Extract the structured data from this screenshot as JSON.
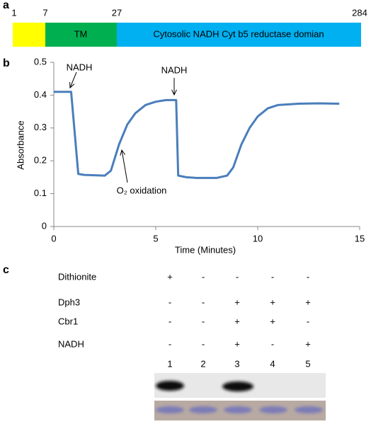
{
  "panel_a": {
    "label": "a",
    "positions": [
      "1",
      "7",
      "27",
      "284"
    ],
    "domains": [
      "TM",
      "Cytosolic NADH Cyt b5 reductase domian"
    ]
  },
  "chart_data": {
    "type": "line",
    "panel_label": "b",
    "xlabel": "Time (Minutes)",
    "ylabel": "Absorbance",
    "x": [
      0,
      0.85,
      1.2,
      1.5,
      2.5,
      2.8,
      3.2,
      3.6,
      4,
      4.5,
      5,
      5.5,
      6,
      6.1,
      6.5,
      7,
      8,
      8.5,
      8.8,
      9.2,
      9.6,
      10,
      10.5,
      11,
      12,
      13,
      14
    ],
    "series": [
      {
        "name": "Absorbance",
        "color": "#4a7ebb",
        "values": [
          0.41,
          0.41,
          0.16,
          0.157,
          0.155,
          0.17,
          0.25,
          0.31,
          0.345,
          0.37,
          0.38,
          0.385,
          0.385,
          0.155,
          0.15,
          0.148,
          0.148,
          0.155,
          0.18,
          0.25,
          0.3,
          0.335,
          0.36,
          0.37,
          0.374,
          0.375,
          0.374
        ]
      }
    ],
    "xlim": [
      0,
      15
    ],
    "xticks": [
      0,
      5,
      10,
      15
    ],
    "ylim": [
      0,
      0.5
    ],
    "yticks": [
      0,
      0.1,
      0.2,
      0.3,
      0.4,
      0.5
    ],
    "annotations": [
      "NADH",
      "NADH",
      "O₂ oxidation"
    ]
  },
  "panel_c": {
    "label": "c",
    "rows": [
      {
        "label": "Dithionite",
        "signs": [
          "+",
          "-",
          "-",
          "-",
          "-"
        ]
      },
      {
        "label": "Dph3",
        "signs": [
          "-",
          "-",
          "+",
          "+",
          "+"
        ]
      },
      {
        "label": "Cbr1",
        "signs": [
          "-",
          "-",
          "+",
          "+",
          "-"
        ]
      },
      {
        "label": "NADH",
        "signs": [
          "-",
          "-",
          "+",
          "-",
          "+"
        ]
      }
    ],
    "lanes": [
      "1",
      "2",
      "3",
      "4",
      "5"
    ]
  }
}
